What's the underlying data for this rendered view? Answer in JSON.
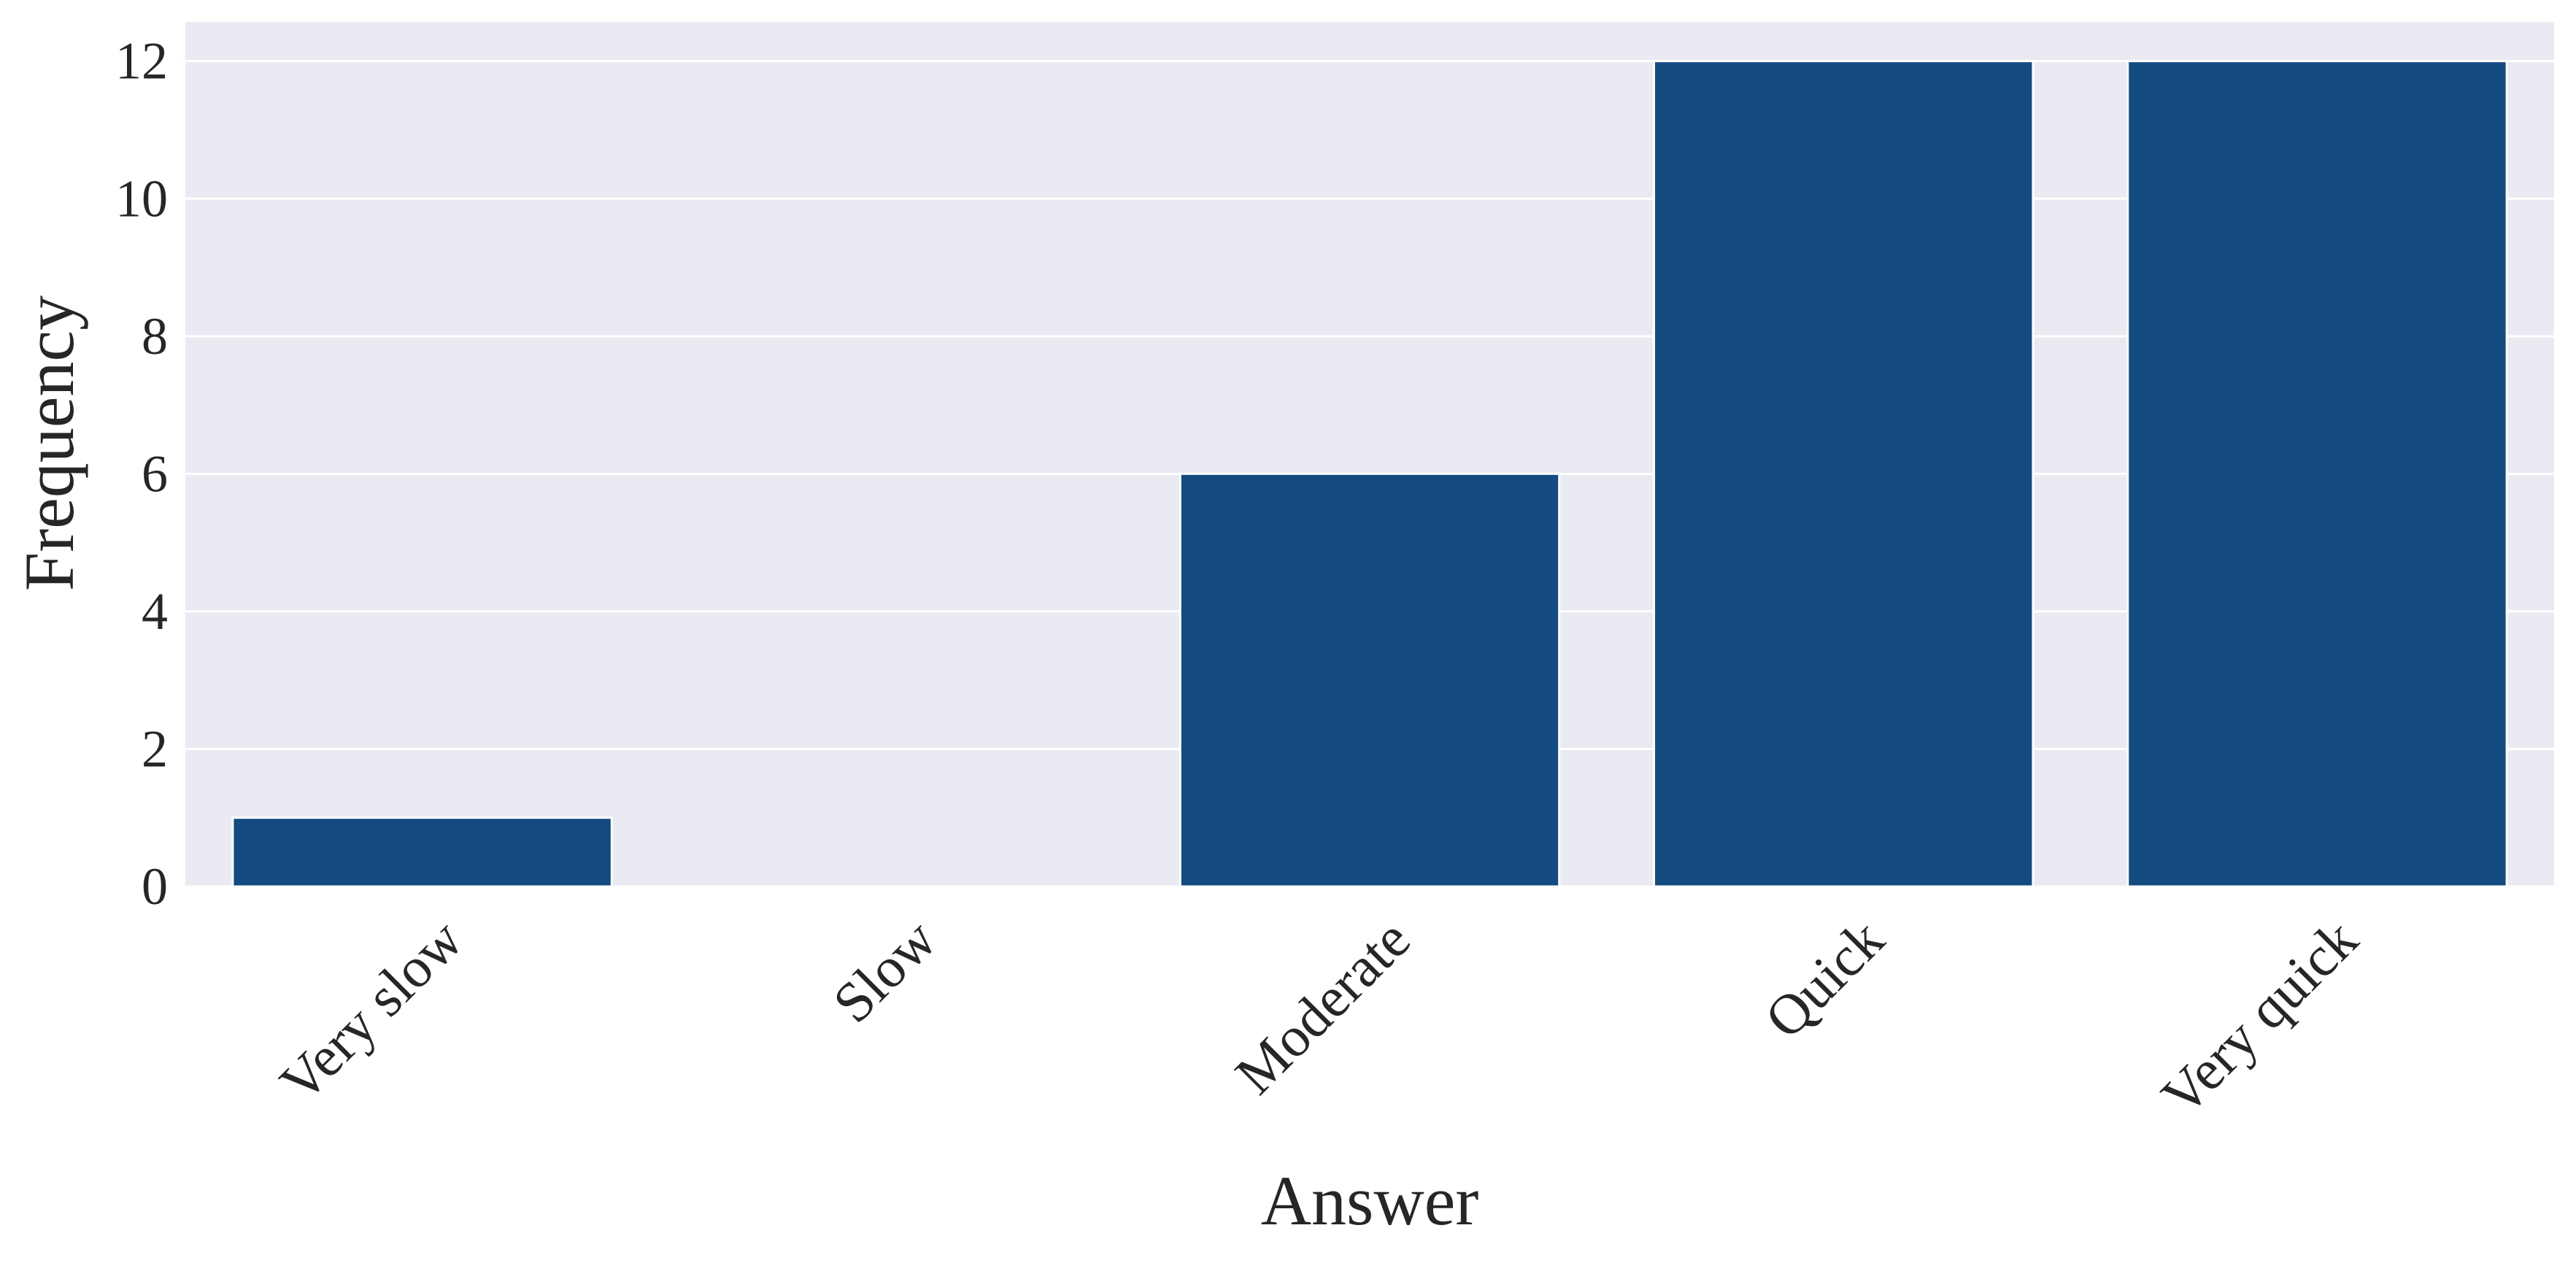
{
  "chart_data": {
    "type": "bar",
    "title": "",
    "xlabel": "Answer",
    "ylabel": "Frequency",
    "categories": [
      "Very slow",
      "Slow",
      "Moderate",
      "Quick",
      "Very quick"
    ],
    "values": [
      1,
      0,
      6,
      12,
      12
    ],
    "ylim": [
      0,
      12.57
    ],
    "yticks": [
      0,
      2,
      4,
      6,
      8,
      10,
      12
    ],
    "ytick_labels": [
      "0",
      "2",
      "4",
      "6",
      "8",
      "10",
      "12"
    ],
    "grid": true,
    "legend": "none",
    "colors": {
      "bar": "#134a80",
      "plot_background": "#eaeaf2",
      "grid": "#ffffff",
      "text": "#262626"
    }
  }
}
